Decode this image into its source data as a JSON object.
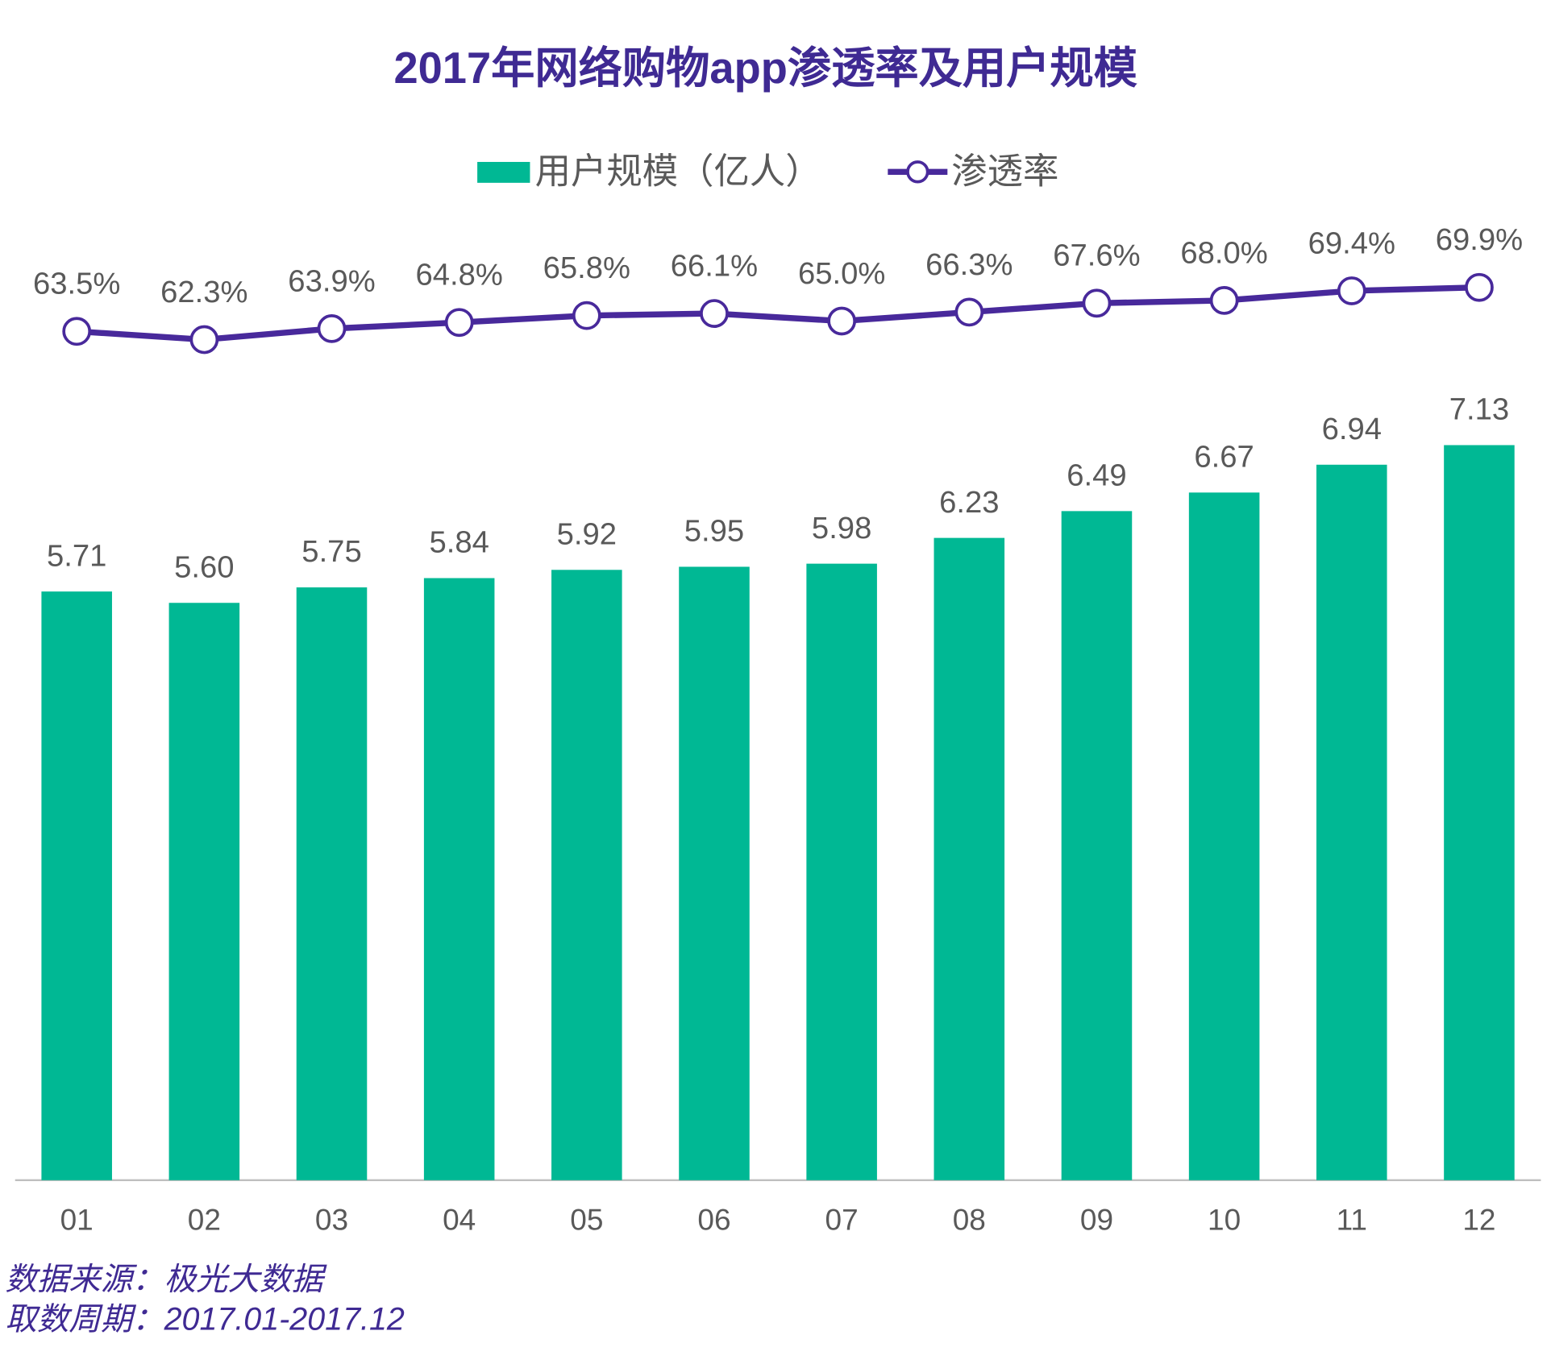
{
  "chart_data": {
    "type": "bar",
    "title": "2017年网络购物app渗透率及用户规模",
    "categories": [
      "01",
      "02",
      "03",
      "04",
      "05",
      "06",
      "07",
      "08",
      "09",
      "10",
      "11",
      "12"
    ],
    "series": [
      {
        "name": "用户规模（亿人）",
        "type": "bar",
        "color": "#00b894",
        "values": [
          5.71,
          5.6,
          5.75,
          5.84,
          5.92,
          5.95,
          5.98,
          6.23,
          6.49,
          6.67,
          6.94,
          7.13
        ],
        "value_labels": [
          "5.71",
          "5.60",
          "5.75",
          "5.84",
          "5.92",
          "5.95",
          "5.98",
          "6.23",
          "6.49",
          "6.67",
          "6.94",
          "7.13"
        ]
      },
      {
        "name": "渗透率",
        "type": "line",
        "axis": "y2",
        "color": "#48299b",
        "values": [
          63.5,
          62.3,
          63.9,
          64.8,
          65.8,
          66.1,
          65.0,
          66.3,
          67.6,
          68.0,
          69.4,
          69.9
        ],
        "value_labels": [
          "63.5%",
          "62.3%",
          "63.9%",
          "64.8%",
          "65.8%",
          "66.1%",
          "65.0%",
          "66.3%",
          "67.6%",
          "68.0%",
          "69.4%",
          "69.9%"
        ]
      }
    ],
    "ylim": [
      0,
      9
    ],
    "y2lim": [
      -60,
      75
    ],
    "notes": [
      "数据来源：极光大数据",
      "取数周期：2017.01-2017.12"
    ]
  }
}
